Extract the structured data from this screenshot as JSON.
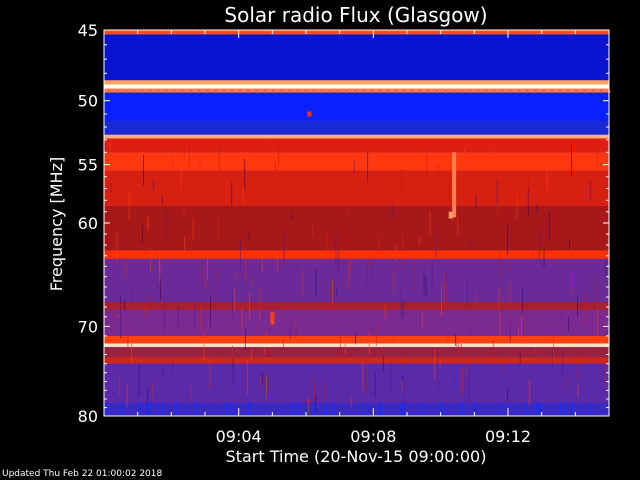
{
  "chart_data": {
    "type": "heatmap",
    "title": "Solar radio Flux (Glasgow)",
    "xlabel": "Start Time (20-Nov-15 09:00:00)",
    "ylabel": "Frequency [MHz]",
    "x_ticks": [
      "09:04",
      "09:08",
      "09:12"
    ],
    "x_tick_minutes": [
      4,
      8,
      12
    ],
    "x_range_minutes": [
      0,
      15.0
    ],
    "y_ticks": [
      45,
      50,
      55,
      60,
      70,
      80
    ],
    "y_range": [
      45,
      80
    ],
    "y_scale": "log",
    "y_direction": "increasing-downward",
    "colormap": [
      "#00005a",
      "#0000d0",
      "#1030ff",
      "#5a2aa8",
      "#7a2a90",
      "#b01818",
      "#d02010",
      "#ff3000",
      "#ffa060",
      "#ffffe8"
    ],
    "frequency_bands": [
      {
        "from": 45.0,
        "to": 45.3,
        "level": "#ff5010"
      },
      {
        "from": 45.3,
        "to": 48.5,
        "level": "#0a14d0"
      },
      {
        "from": 48.5,
        "to": 48.8,
        "level": "#ffa060"
      },
      {
        "from": 48.8,
        "to": 49.1,
        "level": "#ffffe8"
      },
      {
        "from": 49.1,
        "to": 49.4,
        "level": "#ff8040"
      },
      {
        "from": 49.4,
        "to": 51.5,
        "level": "#0a20ff"
      },
      {
        "from": 51.5,
        "to": 52.6,
        "level": "#1a2ad8"
      },
      {
        "from": 52.6,
        "to": 52.9,
        "level": "#ffb080"
      },
      {
        "from": 52.9,
        "to": 54.0,
        "level": "#e01e10"
      },
      {
        "from": 54.0,
        "to": 55.5,
        "level": "#ff3810"
      },
      {
        "from": 55.5,
        "to": 58.5,
        "level": "#d82010"
      },
      {
        "from": 58.5,
        "to": 62.5,
        "level": "#a81818"
      },
      {
        "from": 62.5,
        "to": 63.3,
        "level": "#ff3000"
      },
      {
        "from": 63.3,
        "to": 67.5,
        "level": "#6a2a98"
      },
      {
        "from": 67.5,
        "to": 68.3,
        "level": "#a82030"
      },
      {
        "from": 68.3,
        "to": 71.0,
        "level": "#7a2a90"
      },
      {
        "from": 71.0,
        "to": 71.8,
        "level": "#ff4010"
      },
      {
        "from": 71.8,
        "to": 72.2,
        "level": "#ffe0c0"
      },
      {
        "from": 72.2,
        "to": 73.3,
        "level": "#9a2040"
      },
      {
        "from": 73.3,
        "to": 74.0,
        "level": "#d02818"
      },
      {
        "from": 74.0,
        "to": 78.5,
        "level": "#5a2aa8"
      },
      {
        "from": 78.5,
        "to": 80.0,
        "level": "#3a2ac0"
      }
    ],
    "bursts": [
      {
        "minute": 6.1,
        "freq_from": 50.8,
        "freq_to": 51.2,
        "level": "#ff3000"
      },
      {
        "minute": 10.4,
        "freq_from": 54.0,
        "freq_to": 59.5,
        "level": "#ff8050"
      },
      {
        "minute": 10.3,
        "freq_from": 59.0,
        "freq_to": 59.6,
        "level": "#ffa060"
      },
      {
        "minute": 5.0,
        "freq_from": 68.5,
        "freq_to": 69.8,
        "level": "#ff4010"
      }
    ]
  },
  "footer": {
    "updated": "Updated Thu Feb 22 01:00:02 2018"
  }
}
